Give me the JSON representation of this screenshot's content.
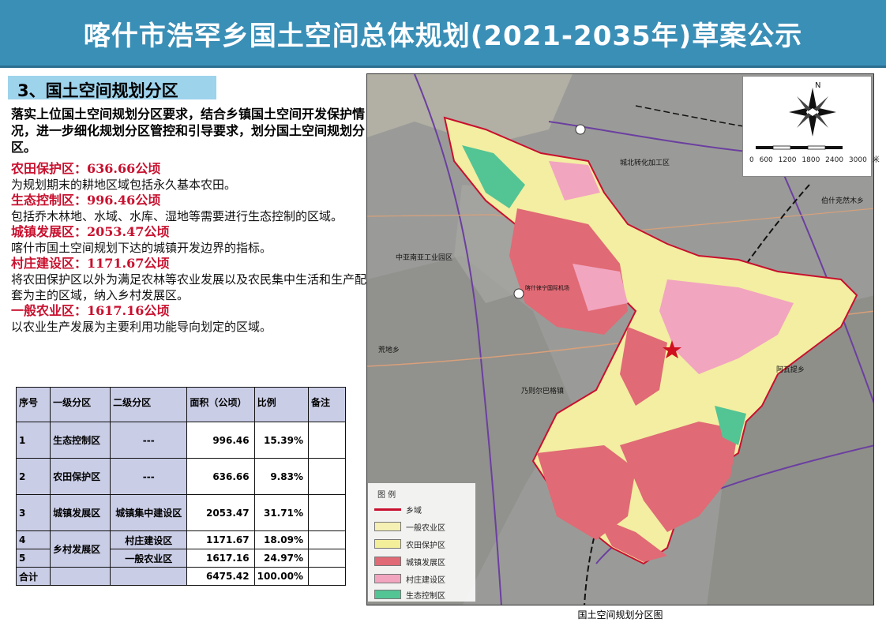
{
  "banner": {
    "title": "喀什市浩罕乡国土空间总体规划(2021-2035年)草案公示"
  },
  "section": {
    "title": "3、国土空间规划分区"
  },
  "intro": {
    "text": "落实上位国土空间规划分区要求，结合乡镇国土空间开发保护情况，进一步细化规划分区管控和引导要求，划分国土空间规划分区。"
  },
  "zones": [
    {
      "title": "农田保护区：636.66公顷",
      "desc": "为规划期末的耕地区域包括永久基本农田。"
    },
    {
      "title": "生态控制区：996.46公顷",
      "desc": "包括乔木林地、水域、水库、湿地等需要进行生态控制的区域。"
    },
    {
      "title": "城镇发展区：2053.47公顷",
      "desc": "喀什市国土空间规划下达的城镇开发边界的指标。"
    },
    {
      "title": "村庄建设区：1171.67公顷",
      "desc": "将农田保护区以外为满足农林等农业发展以及农民集中生活和生产配套为主的区域，纳入乡村发展区。"
    },
    {
      "title": "一般农业区：1617.16公顷",
      "desc": "以农业生产发展为主要利用功能导向划定的区域。"
    }
  ],
  "table": {
    "headers": [
      "序号",
      "一级分区",
      "二级分区",
      "面积（公顷）",
      "比例",
      "备注"
    ],
    "rows": [
      {
        "no": "1",
        "level1": "生态控制区",
        "level2": "---",
        "area": "996.46",
        "ratio": "15.39%",
        "note": ""
      },
      {
        "no": "2",
        "level1": "农田保护区",
        "level2": "---",
        "area": "636.66",
        "ratio": "9.83%",
        "note": ""
      },
      {
        "no": "3",
        "level1": "城镇发展区",
        "level2": "城镇集中建设区",
        "area": "2053.47",
        "ratio": "31.71%",
        "note": ""
      },
      {
        "no": "4",
        "level1": "乡村发展区",
        "level2": "村庄建设区",
        "area": "1171.67",
        "ratio": "18.09%",
        "note": ""
      },
      {
        "no": "5",
        "level1": "",
        "level2": "一般农业区",
        "area": "1617.16",
        "ratio": "24.97%",
        "note": ""
      }
    ],
    "total": {
      "label": "合计",
      "area": "6475.42",
      "ratio": "100.00%"
    }
  },
  "map": {
    "caption": "国土空间规划分区图",
    "labels": {
      "chengbei": "城北转化加工区",
      "zhongya": "中亚南亚工业园区",
      "huangdi": "荒地乡",
      "naizeer": "乃则尔巴格镇",
      "abati": "阿瓦提乡",
      "boshike": "伯什克然木乡",
      "airport": "喀什徕宁国际机场"
    },
    "compass_north": "N",
    "scale": "0  600 1200 1800 2400 3000",
    "scale_unit": "米",
    "legend": {
      "title": "图  例",
      "items": [
        {
          "label": "乡域",
          "color": "#c8102e"
        },
        {
          "label": "一般农业区",
          "color": "#f5f0b4"
        },
        {
          "label": "农田保护区",
          "color": "#f2ee9a"
        },
        {
          "label": "城镇发展区",
          "color": "#e06a75"
        },
        {
          "label": "村庄建设区",
          "color": "#f2a5bf"
        },
        {
          "label": "生态控制区",
          "color": "#53c494"
        }
      ]
    }
  },
  "colors": {
    "banner": "#3a8fb7",
    "section_tag": "#9ed3ec",
    "zone_title": "#c8102e",
    "table_header": "#c9cde6"
  }
}
